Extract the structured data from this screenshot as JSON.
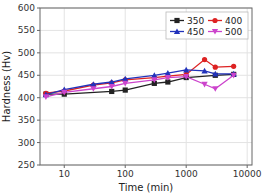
{
  "chart_data": {
    "type": "line",
    "xlabel": "Time (min)",
    "ylabel": "Hardness (Hv)",
    "log": "x",
    "xlim": [
      4,
      12000
    ],
    "xticks": [
      10,
      100,
      1000,
      10000
    ],
    "ylim": [
      250,
      600
    ],
    "yticks": [
      250,
      300,
      350,
      400,
      450,
      500,
      550,
      600
    ],
    "grid": true,
    "legend": "top-right",
    "series": [
      {
        "name": "350",
        "color": "#222222",
        "marker": "square",
        "line_style": "solid",
        "x": [
          5,
          10,
          60,
          100,
          300,
          500,
          1000,
          3000,
          6000
        ],
        "values": [
          408,
          408,
          414,
          417,
          432,
          435,
          445,
          450,
          452
        ]
      },
      {
        "name": "400",
        "color": "#dd2222",
        "marker": "circle",
        "line_style": "solid",
        "x": [
          5,
          10,
          30,
          60,
          100,
          300,
          500,
          1000,
          2000,
          3000,
          6000
        ],
        "values": [
          410,
          415,
          428,
          433,
          440,
          445,
          448,
          452,
          485,
          468,
          470
        ]
      },
      {
        "name": "450",
        "color": "#2233bb",
        "marker": "triangle-up",
        "line_style": "solid",
        "x": [
          5,
          10,
          30,
          60,
          100,
          300,
          500,
          1000,
          2000,
          3000,
          6000
        ],
        "values": [
          407,
          418,
          430,
          435,
          442,
          450,
          455,
          462,
          460,
          453,
          453
        ]
      },
      {
        "name": "500",
        "color": "#cc44cc",
        "marker": "triangle-down",
        "line_style": "solid",
        "x": [
          5,
          10,
          30,
          60,
          100,
          300,
          500,
          1000,
          2000,
          3000,
          6000
        ],
        "values": [
          402,
          412,
          420,
          425,
          432,
          440,
          445,
          447,
          430,
          420,
          450
        ]
      }
    ]
  }
}
